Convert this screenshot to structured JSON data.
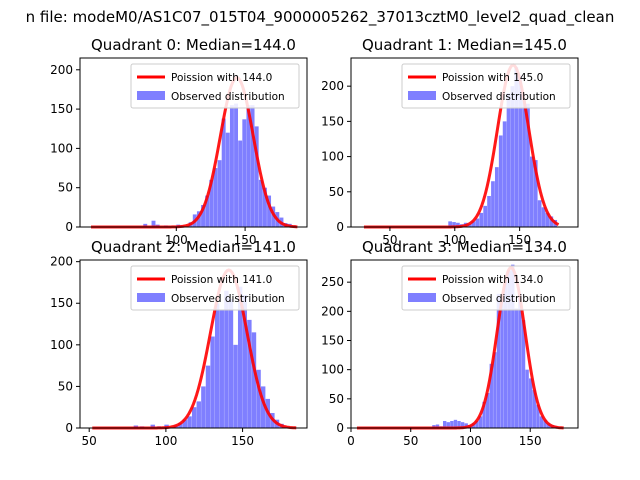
{
  "suptitle": "n file: modeM0/AS1C07_015T04_9000005262_37013cztM0_level2_quad_clean",
  "chart_data": [
    {
      "type": "bar",
      "title": "Quadrant 0: Median=144.0",
      "xlim": [
        30,
        195
      ],
      "ylim": [
        0,
        215
      ],
      "xticks": [
        100,
        150
      ],
      "yticks": [
        0,
        50,
        100,
        150,
        200
      ],
      "poisson_mean": 144.0,
      "poisson_peak": 190,
      "line_range": [
        38,
        188
      ],
      "bin_width": 3.0,
      "legend": {
        "line_label": "Poission with 144.0",
        "bar_label": "Observed distribution",
        "position": "upper right"
      },
      "bins": [
        [
          76,
          4
        ],
        [
          82,
          8
        ],
        [
          85,
          3
        ],
        [
          91,
          2
        ],
        [
          100,
          3
        ],
        [
          103,
          2
        ],
        [
          106,
          1
        ],
        [
          109,
          6
        ],
        [
          112,
          16
        ],
        [
          115,
          20
        ],
        [
          118,
          28
        ],
        [
          121,
          40
        ],
        [
          124,
          60
        ],
        [
          127,
          75
        ],
        [
          130,
          85
        ],
        [
          133,
          138
        ],
        [
          136,
          120
        ],
        [
          139,
          155
        ],
        [
          142,
          157
        ],
        [
          145,
          110
        ],
        [
          148,
          137
        ],
        [
          151,
          155
        ],
        [
          154,
          155
        ],
        [
          157,
          128
        ],
        [
          160,
          60
        ],
        [
          163,
          50
        ],
        [
          166,
          40
        ],
        [
          169,
          26
        ],
        [
          172,
          19
        ],
        [
          175,
          12
        ],
        [
          178,
          5
        ],
        [
          181,
          4
        ],
        [
          184,
          2
        ]
      ]
    },
    {
      "type": "bar",
      "title": "Quadrant 1: Median=145.0",
      "xlim": [
        20,
        195
      ],
      "ylim": [
        0,
        240
      ],
      "xticks": [
        50,
        100,
        150
      ],
      "yticks": [
        0,
        50,
        100,
        150,
        200
      ],
      "poisson_mean": 145.0,
      "poisson_peak": 230,
      "line_range": [
        30,
        180
      ],
      "bin_width": 3.0,
      "legend": {
        "line_label": "Poission with 145.0",
        "bar_label": "Observed distribution",
        "position": "upper right"
      },
      "bins": [
        [
          95,
          8
        ],
        [
          98,
          7
        ],
        [
          101,
          6
        ],
        [
          104,
          4
        ],
        [
          107,
          6
        ],
        [
          110,
          4
        ],
        [
          113,
          8
        ],
        [
          116,
          12
        ],
        [
          119,
          20
        ],
        [
          122,
          30
        ],
        [
          125,
          44
        ],
        [
          128,
          65
        ],
        [
          131,
          85
        ],
        [
          134,
          130
        ],
        [
          137,
          150
        ],
        [
          140,
          190
        ],
        [
          143,
          200
        ],
        [
          146,
          227
        ],
        [
          149,
          215
        ],
        [
          152,
          180
        ],
        [
          155,
          175
        ],
        [
          158,
          100
        ],
        [
          161,
          95
        ],
        [
          164,
          38
        ],
        [
          167,
          28
        ],
        [
          170,
          20
        ],
        [
          173,
          15
        ],
        [
          176,
          10
        ]
      ]
    },
    {
      "type": "bar",
      "title": "Quadrant 2: Median=141.0",
      "xlim": [
        44,
        192
      ],
      "ylim": [
        0,
        202
      ],
      "xticks": [
        50,
        100,
        150
      ],
      "yticks": [
        0,
        50,
        100,
        150,
        200
      ],
      "poisson_mean": 141.0,
      "poisson_peak": 190,
      "line_range": [
        52,
        185
      ],
      "bin_width": 3.0,
      "legend": {
        "line_label": "Poission with 141.0",
        "bar_label": "Observed distribution",
        "position": "upper right"
      },
      "bins": [
        [
          79,
          3
        ],
        [
          83,
          2
        ],
        [
          90,
          4
        ],
        [
          94,
          2
        ],
        [
          99,
          4
        ],
        [
          105,
          3
        ],
        [
          108,
          6
        ],
        [
          111,
          10
        ],
        [
          114,
          14
        ],
        [
          117,
          25
        ],
        [
          120,
          32
        ],
        [
          123,
          50
        ],
        [
          126,
          75
        ],
        [
          129,
          110
        ],
        [
          132,
          150
        ],
        [
          135,
          142
        ],
        [
          138,
          165
        ],
        [
          141,
          155
        ],
        [
          144,
          100
        ],
        [
          147,
          170
        ],
        [
          150,
          160
        ],
        [
          153,
          130
        ],
        [
          156,
          115
        ],
        [
          159,
          70
        ],
        [
          162,
          50
        ],
        [
          165,
          35
        ],
        [
          168,
          18
        ],
        [
          171,
          10
        ],
        [
          174,
          5
        ],
        [
          177,
          2
        ]
      ]
    },
    {
      "type": "bar",
      "title": "Quadrant 3: Median=134.0",
      "xlim": [
        0,
        190
      ],
      "ylim": [
        0,
        288
      ],
      "xticks": [
        0,
        50,
        100,
        150
      ],
      "yticks": [
        0,
        50,
        100,
        150,
        200,
        250
      ],
      "poisson_mean": 134.0,
      "poisson_peak": 275,
      "line_range": [
        5,
        178
      ],
      "bin_width": 3.0,
      "legend": {
        "line_label": "Poission with 134.0",
        "bar_label": "Observed distribution",
        "position": "upper right"
      },
      "bins": [
        [
          68,
          5
        ],
        [
          71,
          6
        ],
        [
          74,
          3
        ],
        [
          77,
          12
        ],
        [
          80,
          10
        ],
        [
          83,
          12
        ],
        [
          86,
          14
        ],
        [
          89,
          12
        ],
        [
          92,
          10
        ],
        [
          95,
          8
        ],
        [
          98,
          5
        ],
        [
          101,
          8
        ],
        [
          104,
          12
        ],
        [
          107,
          20
        ],
        [
          110,
          45
        ],
        [
          113,
          60
        ],
        [
          116,
          110
        ],
        [
          119,
          130
        ],
        [
          122,
          230
        ],
        [
          125,
          230
        ],
        [
          128,
          250
        ],
        [
          131,
          270
        ],
        [
          134,
          280
        ],
        [
          137,
          205
        ],
        [
          140,
          230
        ],
        [
          143,
          185
        ],
        [
          146,
          100
        ],
        [
          149,
          85
        ],
        [
          152,
          65
        ],
        [
          155,
          40
        ],
        [
          158,
          20
        ],
        [
          161,
          14
        ],
        [
          164,
          8
        ],
        [
          167,
          5
        ],
        [
          170,
          3
        ]
      ]
    }
  ]
}
